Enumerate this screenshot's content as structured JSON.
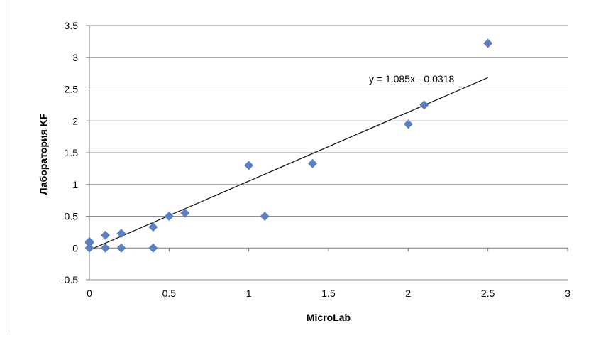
{
  "chart_data": {
    "type": "scatter",
    "title": "",
    "xlabel": "MicroLab",
    "ylabel": "Лаборатория KF",
    "xlim": [
      0,
      3
    ],
    "ylim": [
      -0.5,
      3.5
    ],
    "x_ticks": [
      "0",
      "0.5",
      "1",
      "1.5",
      "2",
      "2.5",
      "3"
    ],
    "y_ticks": [
      "-0.5",
      "0",
      "0.5",
      "1",
      "1.5",
      "2",
      "2.5",
      "3",
      "3.5"
    ],
    "grid": "horizontal",
    "legend": "none",
    "series": [
      {
        "color": "#5b7fc1",
        "marker": "diamond",
        "points": [
          {
            "x": 0,
            "y": 0
          },
          {
            "x": 0,
            "y": 0.1
          },
          {
            "x": 0,
            "y": 0.08
          },
          {
            "x": 0.1,
            "y": 0.2
          },
          {
            "x": 0.1,
            "y": 0
          },
          {
            "x": 0.2,
            "y": 0.23
          },
          {
            "x": 0.2,
            "y": 0
          },
          {
            "x": 0.4,
            "y": 0.33
          },
          {
            "x": 0.4,
            "y": 0
          },
          {
            "x": 0.5,
            "y": 0.5
          },
          {
            "x": 0.6,
            "y": 0.55
          },
          {
            "x": 1.0,
            "y": 1.3
          },
          {
            "x": 1.1,
            "y": 0.5
          },
          {
            "x": 1.4,
            "y": 1.33
          },
          {
            "x": 2.0,
            "y": 1.95
          },
          {
            "x": 2.1,
            "y": 2.25
          },
          {
            "x": 2.5,
            "y": 3.22
          }
        ]
      }
    ],
    "trendline": {
      "type": "linear",
      "slope": 1.085,
      "intercept": -0.0318,
      "x_range": [
        0,
        2.5
      ],
      "color": "#1a1a1a",
      "equation_text": "y = 1.085x - 0.0318"
    }
  }
}
